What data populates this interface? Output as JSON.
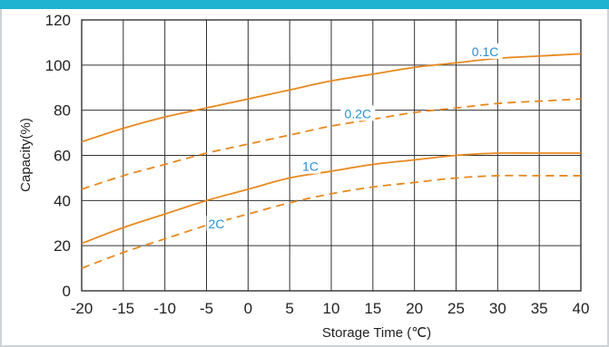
{
  "chart_data": {
    "type": "line",
    "title": "",
    "xlabel": "Storage Time (℃)",
    "ylabel": "Capacity(%)",
    "xlim": [
      -20,
      40
    ],
    "ylim": [
      0,
      120
    ],
    "xticks": [
      "-20",
      "-15",
      "-10",
      "-5",
      "0",
      "5",
      "10",
      "15",
      "20",
      "25",
      "30",
      "35",
      "40"
    ],
    "yticks": [
      "0",
      "20",
      "40",
      "60",
      "80",
      "100",
      "120"
    ],
    "grid": true,
    "legend": "inline-labels",
    "colors": {
      "line": "#e8881e",
      "label": "#2a8fd0",
      "topbar": "#1fb3d1",
      "grid": "#333333"
    },
    "series": [
      {
        "name": "0.1C",
        "style": "solid",
        "x": [
          -20,
          -15,
          -10,
          -5,
          0,
          5,
          10,
          15,
          20,
          25,
          30,
          35,
          40
        ],
        "y": [
          66,
          72,
          77,
          81,
          85,
          89,
          93,
          96,
          99,
          101,
          103,
          104,
          105
        ]
      },
      {
        "name": "0.2C",
        "style": "dashed",
        "x": [
          -20,
          -15,
          -10,
          -5,
          0,
          5,
          10,
          15,
          20,
          25,
          30,
          35,
          40
        ],
        "y": [
          45,
          51,
          56,
          61,
          65,
          69,
          73,
          76,
          79,
          81,
          83,
          84,
          85
        ]
      },
      {
        "name": "1C",
        "style": "solid",
        "x": [
          -20,
          -15,
          -10,
          -5,
          0,
          5,
          10,
          15,
          20,
          25,
          30,
          35,
          40
        ],
        "y": [
          21,
          28,
          34,
          40,
          45,
          50,
          53,
          56,
          58,
          60,
          61,
          61,
          61
        ]
      },
      {
        "name": "2C",
        "style": "dashed",
        "x": [
          -20,
          -15,
          -10,
          -5,
          0,
          5,
          10,
          15,
          20,
          25,
          30,
          35,
          40
        ],
        "y": [
          10,
          17,
          23,
          29,
          34,
          39,
          43,
          46,
          48,
          50,
          51,
          51,
          51
        ]
      }
    ]
  }
}
